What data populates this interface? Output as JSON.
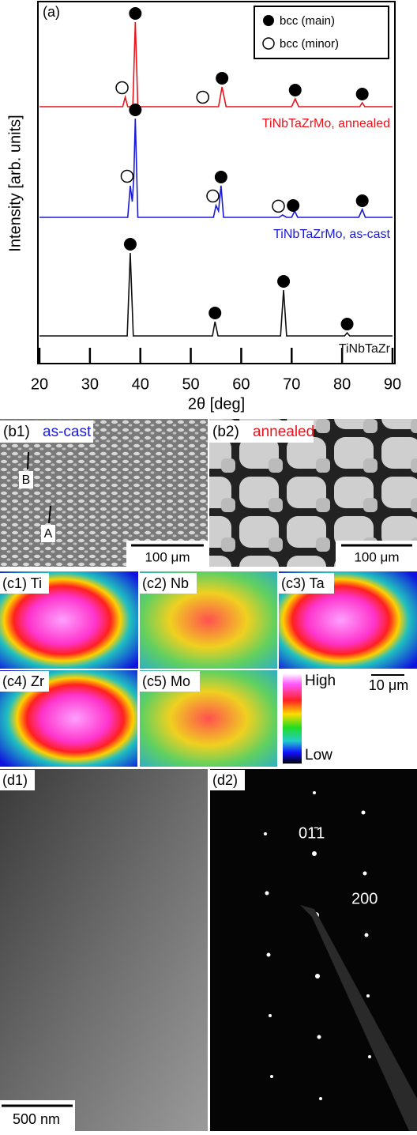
{
  "chart_data": {
    "type": "line",
    "panel_label": "(a)",
    "x_label": "2θ [deg]",
    "y_label": "Intensity [arb. units]",
    "xlim": [
      20,
      90
    ],
    "xticks": [
      20,
      30,
      40,
      50,
      60,
      70,
      80,
      90
    ],
    "legend": {
      "main": "bcc (main)",
      "minor": "bcc (minor)"
    },
    "series": [
      {
        "name": "TiNbTaZrMo, annealed",
        "color": "#e8141b",
        "x": [
          20,
          36.5,
          37,
          37.5,
          38.5,
          39,
          39.5,
          55.5,
          56.2,
          57,
          70,
          70.7,
          71.4,
          83.5,
          84,
          84.5,
          90
        ],
        "values": [
          0,
          0,
          12,
          0,
          0,
          107,
          0,
          0,
          25,
          0,
          0,
          10,
          0,
          0,
          5,
          0,
          0
        ],
        "main_peaks": [
          39,
          56.2,
          70.7,
          84
        ],
        "minor_peaks": [
          37,
          53
        ]
      },
      {
        "name": "TiNbTaZrMo, as-cast",
        "color": "#1a1ad6",
        "x": [
          20,
          37.5,
          38,
          38.4,
          38.7,
          39,
          39.5,
          54.5,
          55,
          55.5,
          56,
          56.5,
          67.5,
          68.2,
          69,
          70,
          70.6,
          71.2,
          83.3,
          84,
          84.6,
          90
        ],
        "values": [
          0,
          0,
          40,
          20,
          50,
          125,
          0,
          0,
          15,
          8,
          40,
          0,
          0,
          3,
          0,
          0,
          8,
          0,
          0,
          10,
          0,
          0
        ],
        "main_peaks": [
          39,
          56,
          70.3,
          84
        ],
        "minor_peaks": [
          38,
          55,
          68
        ]
      },
      {
        "name": "TiNbTaZr",
        "color": "#111111",
        "x": [
          20,
          37.4,
          38,
          38.6,
          54.3,
          54.8,
          55.4,
          67.8,
          68.4,
          69,
          80.5,
          81,
          81.5,
          90
        ],
        "values": [
          0,
          0,
          105,
          0,
          0,
          18,
          0,
          0,
          58,
          0,
          0,
          4,
          0,
          0
        ],
        "main_peaks": [
          38,
          54.8,
          68.4,
          81
        ],
        "minor_peaks": []
      }
    ]
  },
  "panels": {
    "b1": {
      "label": "(b1)",
      "state": "as-cast",
      "scale": "100 μm",
      "arrows": [
        "B",
        "A"
      ]
    },
    "b2": {
      "label": "(b2)",
      "state": "annealed",
      "scale": "100 μm"
    },
    "c": {
      "maps": [
        "(c1) Ti",
        "(c2) Nb",
        "(c3) Ta",
        "(c4) Zr",
        "(c5) Mo"
      ],
      "high": "High",
      "low": "Low",
      "scale": "10 μm"
    },
    "d1": {
      "label": "(d1)",
      "scale": "500 nm"
    },
    "d2": {
      "label": "(d2)",
      "spots": [
        "01̄1",
        "200"
      ]
    }
  }
}
